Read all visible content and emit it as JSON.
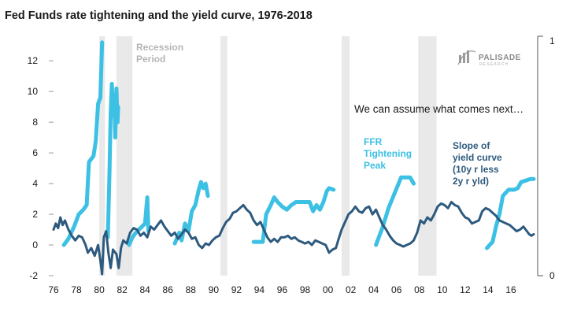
{
  "chart_data": {
    "type": "line",
    "title": "Fed Funds rate tightening and the yield curve, 1976-2018",
    "x_range": [
      1976,
      2018
    ],
    "x_ticks": [
      "76",
      "78",
      "80",
      "82",
      "84",
      "86",
      "88",
      "90",
      "92",
      "94",
      "96",
      "98",
      "00",
      "02",
      "04",
      "06",
      "08",
      "10",
      "12",
      "14",
      "16"
    ],
    "x_tick_years": [
      1976,
      1978,
      1980,
      1982,
      1984,
      1986,
      1988,
      1990,
      1992,
      1994,
      1996,
      1998,
      2000,
      2002,
      2004,
      2006,
      2008,
      2010,
      2012,
      2014,
      2016
    ],
    "ylim": [
      -2,
      13.5
    ],
    "y_ticks": [
      "-2",
      "0",
      "2",
      "4",
      "6",
      "8",
      "10",
      "12"
    ],
    "y_tick_values": [
      -2,
      0,
      2,
      4,
      6,
      8,
      10,
      12
    ],
    "right_axis_ticks": [
      "1",
      "0"
    ],
    "recessions": [
      [
        1980.0,
        1980.5
      ],
      [
        1981.5,
        1982.9
      ],
      [
        1990.6,
        1991.2
      ],
      [
        2001.2,
        2001.9
      ],
      [
        2007.9,
        2009.5
      ]
    ],
    "series": [
      {
        "name": "FFR Tightening Peak",
        "color": "#3cc0e4",
        "segments": [
          [
            [
              1976.9,
              0.0
            ],
            [
              1977.3,
              0.4
            ],
            [
              1977.8,
              1.2
            ],
            [
              1978.2,
              2.0
            ],
            [
              1978.6,
              2.3
            ],
            [
              1978.9,
              2.6
            ],
            [
              1979.1,
              5.4
            ],
            [
              1979.5,
              5.8
            ],
            [
              1979.7,
              6.8
            ],
            [
              1979.9,
              9.2
            ],
            [
              1980.1,
              9.6
            ],
            [
              1980.25,
              13.2
            ]
          ],
          [
            [
              1980.75,
              0.5
            ],
            [
              1980.9,
              5.0
            ],
            [
              1981.0,
              8.6
            ],
            [
              1981.1,
              10.5
            ],
            [
              1981.2,
              8.5
            ],
            [
              1981.3,
              9.8
            ],
            [
              1981.4,
              7.0
            ],
            [
              1981.5,
              10.2
            ],
            [
              1981.6,
              8.0
            ],
            [
              1981.65,
              9.0
            ]
          ],
          [
            [
              1982.6,
              0.0
            ],
            [
              1982.9,
              0.5
            ],
            [
              1983.2,
              0.8
            ],
            [
              1983.6,
              1.1
            ],
            [
              1984.0,
              1.4
            ],
            [
              1984.2,
              3.1
            ],
            [
              1984.3,
              0.9
            ]
          ],
          [
            [
              1986.6,
              0.1
            ],
            [
              1987.0,
              0.8
            ],
            [
              1987.2,
              0.3
            ],
            [
              1987.5,
              1.4
            ],
            [
              1987.8,
              0.9
            ],
            [
              1988.1,
              2.2
            ],
            [
              1988.4,
              2.6
            ],
            [
              1988.7,
              3.6
            ],
            [
              1988.9,
              4.1
            ],
            [
              1989.1,
              3.7
            ],
            [
              1989.3,
              4.0
            ],
            [
              1989.5,
              3.2
            ]
          ],
          [
            [
              1993.5,
              0.2
            ],
            [
              1994.3,
              0.2
            ],
            [
              1994.6,
              2.0
            ],
            [
              1995.0,
              2.6
            ],
            [
              1995.3,
              3.1
            ],
            [
              1995.6,
              2.8
            ],
            [
              1996.0,
              2.5
            ],
            [
              1996.4,
              2.3
            ],
            [
              1996.8,
              2.6
            ],
            [
              1997.2,
              2.8
            ],
            [
              1997.6,
              2.8
            ],
            [
              1998.0,
              2.8
            ],
            [
              1998.4,
              2.8
            ],
            [
              1998.7,
              2.2
            ],
            [
              1999.0,
              2.6
            ],
            [
              1999.3,
              2.3
            ],
            [
              1999.6,
              2.8
            ],
            [
              1999.9,
              3.5
            ],
            [
              2000.1,
              3.7
            ],
            [
              2000.5,
              3.6
            ]
          ],
          [
            [
              2004.2,
              0.0
            ],
            [
              2004.8,
              1.2
            ],
            [
              2005.3,
              2.4
            ],
            [
              2005.9,
              3.5
            ],
            [
              2006.4,
              4.4
            ],
            [
              2006.8,
              4.4
            ],
            [
              2007.2,
              4.4
            ],
            [
              2007.5,
              4.0
            ]
          ],
          [
            [
              2013.9,
              -0.2
            ],
            [
              2014.4,
              0.2
            ],
            [
              2014.7,
              1.2
            ],
            [
              2015.0,
              2.0
            ],
            [
              2015.3,
              3.2
            ],
            [
              2015.8,
              3.6
            ],
            [
              2016.3,
              3.6
            ],
            [
              2016.6,
              3.7
            ],
            [
              2016.9,
              4.1
            ],
            [
              2017.3,
              4.2
            ],
            [
              2017.7,
              4.3
            ],
            [
              2018.0,
              4.3
            ]
          ]
        ]
      },
      {
        "name": "Slope of yield curve (10y r less 2y r yld)",
        "color": "#2d5a7e",
        "segments": [
          [
            [
              1976.0,
              1.0
            ],
            [
              1976.2,
              1.4
            ],
            [
              1976.4,
              1.1
            ],
            [
              1976.6,
              1.8
            ],
            [
              1976.8,
              1.3
            ],
            [
              1977.0,
              1.6
            ],
            [
              1977.3,
              1.0
            ],
            [
              1977.6,
              0.6
            ],
            [
              1977.9,
              0.3
            ],
            [
              1978.2,
              0.6
            ],
            [
              1978.5,
              0.5
            ],
            [
              1978.8,
              0.0
            ],
            [
              1979.0,
              -0.5
            ],
            [
              1979.3,
              -0.2
            ],
            [
              1979.6,
              -0.7
            ],
            [
              1979.9,
              0.0
            ],
            [
              1980.1,
              -1.0
            ],
            [
              1980.25,
              -1.9
            ],
            [
              1980.4,
              0.5
            ],
            [
              1980.6,
              0.9
            ],
            [
              1980.8,
              -0.5
            ],
            [
              1981.0,
              -1.5
            ],
            [
              1981.2,
              -0.3
            ],
            [
              1981.5,
              -0.6
            ],
            [
              1981.7,
              -1.5
            ],
            [
              1981.9,
              -0.2
            ],
            [
              1982.1,
              0.3
            ],
            [
              1982.4,
              0.1
            ],
            [
              1982.7,
              0.8
            ],
            [
              1983.0,
              1.1
            ],
            [
              1983.3,
              1.0
            ],
            [
              1983.6,
              0.6
            ],
            [
              1983.9,
              0.8
            ],
            [
              1984.2,
              0.5
            ],
            [
              1984.5,
              1.2
            ],
            [
              1984.8,
              1.0
            ],
            [
              1985.1,
              1.3
            ],
            [
              1985.4,
              1.6
            ],
            [
              1985.7,
              1.2
            ],
            [
              1986.0,
              0.9
            ],
            [
              1986.3,
              0.6
            ],
            [
              1986.6,
              0.8
            ],
            [
              1986.9,
              0.4
            ],
            [
              1987.2,
              0.7
            ],
            [
              1987.5,
              1.0
            ],
            [
              1987.8,
              0.8
            ],
            [
              1988.1,
              0.4
            ],
            [
              1988.4,
              0.5
            ],
            [
              1988.7,
              0.0
            ],
            [
              1989.0,
              -0.2
            ],
            [
              1989.3,
              0.1
            ],
            [
              1989.6,
              0.0
            ],
            [
              1989.9,
              0.3
            ],
            [
              1990.2,
              0.5
            ],
            [
              1990.5,
              0.6
            ],
            [
              1990.8,
              1.1
            ],
            [
              1991.1,
              1.5
            ],
            [
              1991.4,
              1.7
            ],
            [
              1991.7,
              2.1
            ],
            [
              1992.0,
              2.2
            ],
            [
              1992.3,
              2.4
            ],
            [
              1992.6,
              2.6
            ],
            [
              1992.9,
              2.3
            ],
            [
              1993.2,
              2.1
            ],
            [
              1993.5,
              1.6
            ],
            [
              1993.8,
              1.3
            ],
            [
              1994.1,
              1.5
            ],
            [
              1994.4,
              1.0
            ],
            [
              1994.7,
              0.5
            ],
            [
              1995.0,
              0.2
            ],
            [
              1995.3,
              0.4
            ],
            [
              1995.6,
              0.2
            ],
            [
              1995.9,
              0.5
            ],
            [
              1996.2,
              0.5
            ],
            [
              1996.5,
              0.6
            ],
            [
              1996.8,
              0.4
            ],
            [
              1997.1,
              0.5
            ],
            [
              1997.4,
              0.3
            ],
            [
              1997.7,
              0.2
            ],
            [
              1998.0,
              0.1
            ],
            [
              1998.3,
              0.2
            ],
            [
              1998.6,
              0.0
            ],
            [
              1998.9,
              0.3
            ],
            [
              1999.2,
              0.2
            ],
            [
              1999.5,
              0.1
            ],
            [
              1999.8,
              0.0
            ],
            [
              2000.1,
              -0.5
            ],
            [
              2000.4,
              -0.3
            ],
            [
              2000.7,
              -0.2
            ],
            [
              2000.9,
              0.3
            ],
            [
              2001.2,
              1.0
            ],
            [
              2001.5,
              1.5
            ],
            [
              2001.8,
              2.0
            ],
            [
              2002.1,
              2.2
            ],
            [
              2002.4,
              2.5
            ],
            [
              2002.7,
              2.2
            ],
            [
              2003.0,
              2.1
            ],
            [
              2003.3,
              2.4
            ],
            [
              2003.6,
              2.5
            ],
            [
              2003.9,
              2.0
            ],
            [
              2004.2,
              2.3
            ],
            [
              2004.5,
              1.8
            ],
            [
              2004.8,
              1.3
            ],
            [
              2005.1,
              1.0
            ],
            [
              2005.4,
              0.6
            ],
            [
              2005.7,
              0.3
            ],
            [
              2006.0,
              0.1
            ],
            [
              2006.3,
              0.0
            ],
            [
              2006.6,
              -0.1
            ],
            [
              2006.9,
              0.0
            ],
            [
              2007.2,
              0.1
            ],
            [
              2007.5,
              0.3
            ],
            [
              2007.8,
              0.8
            ],
            [
              2008.1,
              1.6
            ],
            [
              2008.4,
              1.4
            ],
            [
              2008.7,
              1.8
            ],
            [
              2009.0,
              1.6
            ],
            [
              2009.3,
              2.0
            ],
            [
              2009.6,
              2.5
            ],
            [
              2009.9,
              2.7
            ],
            [
              2010.2,
              2.6
            ],
            [
              2010.5,
              2.4
            ],
            [
              2010.8,
              2.8
            ],
            [
              2011.1,
              2.6
            ],
            [
              2011.4,
              2.5
            ],
            [
              2011.7,
              2.1
            ],
            [
              2012.0,
              1.8
            ],
            [
              2012.3,
              1.7
            ],
            [
              2012.6,
              1.4
            ],
            [
              2012.9,
              1.5
            ],
            [
              2013.2,
              1.6
            ],
            [
              2013.5,
              2.2
            ],
            [
              2013.8,
              2.4
            ],
            [
              2014.1,
              2.3
            ],
            [
              2014.4,
              2.1
            ],
            [
              2014.7,
              1.9
            ],
            [
              2015.0,
              1.6
            ],
            [
              2015.3,
              1.5
            ],
            [
              2015.6,
              1.4
            ],
            [
              2015.9,
              1.3
            ],
            [
              2016.2,
              1.1
            ],
            [
              2016.5,
              0.9
            ],
            [
              2016.8,
              1.0
            ],
            [
              2017.1,
              1.2
            ],
            [
              2017.4,
              0.9
            ],
            [
              2017.6,
              0.7
            ],
            [
              2017.8,
              0.6
            ],
            [
              2018.0,
              0.7
            ]
          ]
        ]
      }
    ],
    "labels": {
      "recession": [
        "Recession",
        "Period"
      ],
      "ffr": [
        "FFR",
        "Tightening",
        "Peak"
      ],
      "slope": [
        "Slope of",
        "yield curve",
        "(10y r less",
        "2y r yld)"
      ],
      "note": "We can assume what comes next…",
      "logo": "PALISADE",
      "logo_sub": "RESEARCH"
    }
  }
}
